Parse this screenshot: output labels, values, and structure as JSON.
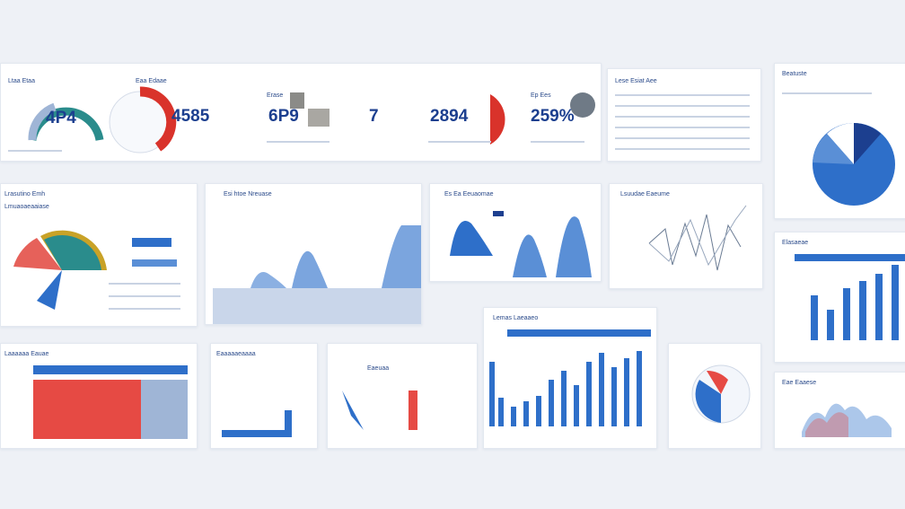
{
  "kpis": {
    "k1": {
      "value": "4P4",
      "label": "Ltaa Etaa"
    },
    "k2": {
      "value": "4585",
      "label": "Eaa Edaae"
    },
    "k3": {
      "value": "6P9",
      "label": "Erase"
    },
    "k4": {
      "value": "7",
      "label": ""
    },
    "k5": {
      "value": "2894",
      "label": ""
    },
    "k6": {
      "value": "259%",
      "label": "Ep Ees"
    }
  },
  "panels": {
    "table_top": {
      "title": "Lese Esiat Aee"
    },
    "pie_right": {
      "title": "Beatuste"
    },
    "donut": {
      "title": "Lrasutino Emh",
      "subtitle": "Lmuaoaeaaiase"
    },
    "area_mid": {
      "title": "Esi htoe Nreuase"
    },
    "bumps": {
      "title": "Es Ea Eeuaomae"
    },
    "network": {
      "title": "Lsuudae Eaeume"
    },
    "bars_right": {
      "title": "Elasaeae"
    },
    "heat": {
      "title": "Laaaaaa Eauae"
    },
    "small_bars": {
      "title": "Eaaaaaeaaaa"
    },
    "mix": {
      "title": "Eaeuaa"
    },
    "vbars": {
      "title": "Lemas Laeaaeo"
    },
    "bottom_right": {
      "title": "Eae Eaaese"
    }
  },
  "colors": {
    "accent": "#2e6fc9",
    "dark": "#1c3f8f",
    "red": "#d9332b",
    "teal": "#2a8c8c",
    "gold": "#c9a227"
  }
}
